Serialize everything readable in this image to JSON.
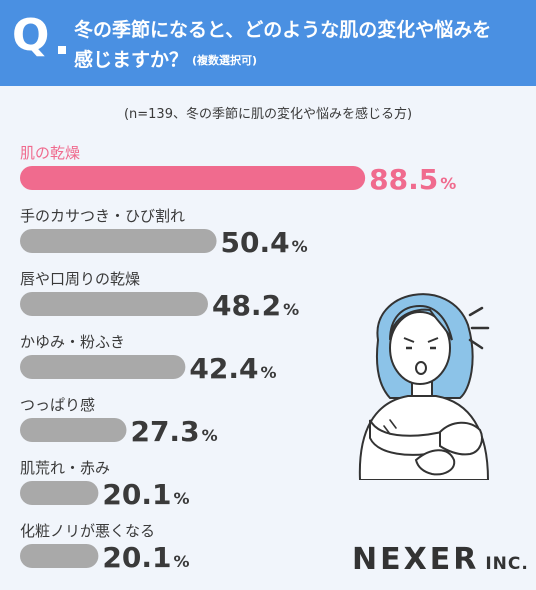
{
  "header": {
    "q_mark": "Q",
    "question_line1": "冬の季節になると、どのような肌の変化や悩みを",
    "question_line2": "感じますか？",
    "question_note": "(複数選択可)"
  },
  "sample_note": "(n=139、冬の季節に肌の変化や悩みを感じる方)",
  "chart_data": {
    "type": "bar",
    "orientation": "horizontal",
    "categories": [
      "肌の乾燥",
      "手のカサつき・ひび割れ",
      "唇や口周りの乾燥",
      "かゆみ・粉ふき",
      "つっぱり感",
      "肌荒れ・赤み",
      "化粧ノリが悪くなる"
    ],
    "values": [
      88.5,
      50.4,
      48.2,
      42.4,
      27.3,
      20.1,
      20.1
    ],
    "value_labels": [
      "88.5",
      "50.4",
      "48.2",
      "42.4",
      "27.3",
      "20.1",
      "20.1"
    ],
    "unit": "%",
    "highlight_index": 0,
    "xlim": [
      0,
      100
    ],
    "grid": false,
    "legend": "none",
    "colors": {
      "highlight": "#f06b8e",
      "default": "#a9a9a9",
      "label": "#3a3a3a",
      "highlight_label": "#f06b8e"
    }
  },
  "logo": {
    "main": "NEXER",
    "sub": "INC."
  },
  "colors": {
    "header_bg": "#4a90e2",
    "page_bg": "#f1f5fb"
  }
}
